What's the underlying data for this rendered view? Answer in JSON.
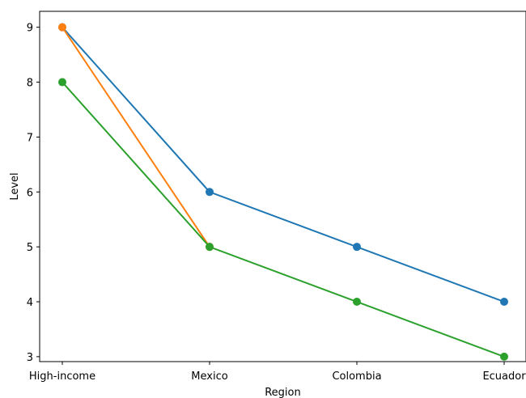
{
  "chart_data": {
    "type": "line",
    "title": "",
    "xlabel": "Region",
    "ylabel": "Level",
    "categories": [
      "High-income",
      "Mexico",
      "Colombia",
      "Ecuador"
    ],
    "ylim": [
      2.91,
      9.29
    ],
    "yticks": [
      3,
      4,
      5,
      6,
      7,
      8,
      9
    ],
    "grid": false,
    "legend": "none",
    "series": [
      {
        "color": "#1f77b4",
        "values": [
          9,
          6,
          5,
          4
        ]
      },
      {
        "color": "#ff7f0e",
        "values": [
          9,
          5,
          null,
          null
        ]
      },
      {
        "color": "#2ca02c",
        "values": [
          8,
          5,
          4,
          3
        ]
      }
    ]
  }
}
